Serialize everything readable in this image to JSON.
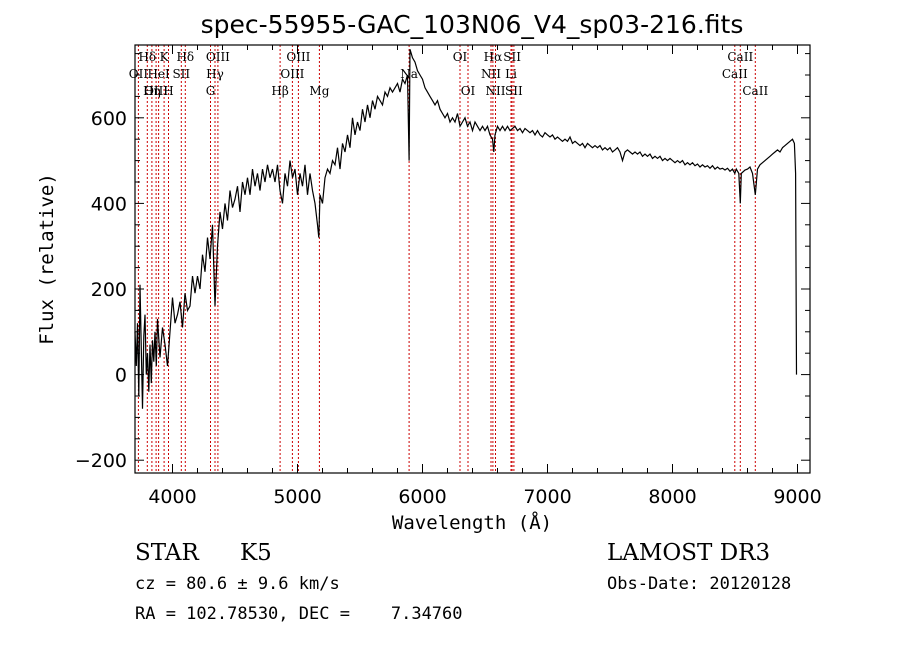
{
  "chart_data": {
    "type": "line",
    "title": "spec-55955-GAC_103N06_V4_sp03-216.fits",
    "xlabel": "Wavelength (Å)",
    "ylabel": "Flux (relative)",
    "xlim": [
      3700,
      9100
    ],
    "ylim": [
      -230,
      770
    ],
    "xticks": [
      4000,
      5000,
      6000,
      7000,
      8000,
      9000
    ],
    "yticks": [
      -200,
      0,
      200,
      400,
      600
    ],
    "series": [
      {
        "name": "spectrum",
        "points": [
          [
            3700,
            100
          ],
          [
            3710,
            20
          ],
          [
            3720,
            120
          ],
          [
            3730,
            -50
          ],
          [
            3740,
            210
          ],
          [
            3750,
            60
          ],
          [
            3760,
            -80
          ],
          [
            3770,
            90
          ],
          [
            3780,
            140
          ],
          [
            3790,
            0
          ],
          [
            3800,
            50
          ],
          [
            3810,
            -40
          ],
          [
            3820,
            70
          ],
          [
            3830,
            -20
          ],
          [
            3840,
            80
          ],
          [
            3850,
            30
          ],
          [
            3860,
            100
          ],
          [
            3870,
            20
          ],
          [
            3880,
            130
          ],
          [
            3900,
            40
          ],
          [
            3920,
            110
          ],
          [
            3940,
            70
          ],
          [
            3960,
            20
          ],
          [
            3980,
            100
          ],
          [
            4000,
            180
          ],
          [
            4020,
            120
          ],
          [
            4040,
            140
          ],
          [
            4060,
            170
          ],
          [
            4080,
            110
          ],
          [
            4100,
            190
          ],
          [
            4120,
            150
          ],
          [
            4140,
            160
          ],
          [
            4160,
            230
          ],
          [
            4180,
            190
          ],
          [
            4200,
            230
          ],
          [
            4220,
            200
          ],
          [
            4240,
            280
          ],
          [
            4260,
            240
          ],
          [
            4280,
            320
          ],
          [
            4300,
            270
          ],
          [
            4320,
            350
          ],
          [
            4340,
            160
          ],
          [
            4360,
            300
          ],
          [
            4380,
            380
          ],
          [
            4400,
            340
          ],
          [
            4420,
            400
          ],
          [
            4440,
            360
          ],
          [
            4460,
            430
          ],
          [
            4480,
            390
          ],
          [
            4500,
            410
          ],
          [
            4520,
            440
          ],
          [
            4540,
            380
          ],
          [
            4560,
            450
          ],
          [
            4580,
            420
          ],
          [
            4600,
            460
          ],
          [
            4620,
            420
          ],
          [
            4640,
            480
          ],
          [
            4660,
            440
          ],
          [
            4680,
            470
          ],
          [
            4700,
            430
          ],
          [
            4720,
            480
          ],
          [
            4740,
            450
          ],
          [
            4760,
            490
          ],
          [
            4780,
            460
          ],
          [
            4800,
            480
          ],
          [
            4820,
            450
          ],
          [
            4840,
            490
          ],
          [
            4860,
            430
          ],
          [
            4880,
            400
          ],
          [
            4900,
            470
          ],
          [
            4920,
            440
          ],
          [
            4940,
            500
          ],
          [
            4960,
            460
          ],
          [
            4980,
            480
          ],
          [
            5000,
            420
          ],
          [
            5020,
            470
          ],
          [
            5040,
            440
          ],
          [
            5060,
            490
          ],
          [
            5080,
            420
          ],
          [
            5100,
            470
          ],
          [
            5120,
            430
          ],
          [
            5140,
            400
          ],
          [
            5160,
            350
          ],
          [
            5170,
            320
          ],
          [
            5180,
            420
          ],
          [
            5200,
            400
          ],
          [
            5220,
            460
          ],
          [
            5240,
            480
          ],
          [
            5260,
            470
          ],
          [
            5280,
            500
          ],
          [
            5300,
            490
          ],
          [
            5320,
            530
          ],
          [
            5340,
            480
          ],
          [
            5360,
            540
          ],
          [
            5380,
            520
          ],
          [
            5400,
            560
          ],
          [
            5420,
            530
          ],
          [
            5440,
            600
          ],
          [
            5460,
            560
          ],
          [
            5480,
            590
          ],
          [
            5500,
            570
          ],
          [
            5520,
            620
          ],
          [
            5540,
            590
          ],
          [
            5560,
            630
          ],
          [
            5580,
            600
          ],
          [
            5600,
            640
          ],
          [
            5620,
            620
          ],
          [
            5640,
            650
          ],
          [
            5660,
            640
          ],
          [
            5680,
            630
          ],
          [
            5700,
            660
          ],
          [
            5720,
            650
          ],
          [
            5740,
            670
          ],
          [
            5760,
            660
          ],
          [
            5780,
            670
          ],
          [
            5800,
            680
          ],
          [
            5820,
            660
          ],
          [
            5840,
            690
          ],
          [
            5860,
            680
          ],
          [
            5880,
            700
          ],
          [
            5893,
            500
          ],
          [
            5900,
            760
          ],
          [
            5920,
            740
          ],
          [
            5940,
            730
          ],
          [
            5960,
            710
          ],
          [
            5980,
            700
          ],
          [
            6000,
            690
          ],
          [
            6020,
            670
          ],
          [
            6040,
            660
          ],
          [
            6060,
            650
          ],
          [
            6080,
            640
          ],
          [
            6100,
            630
          ],
          [
            6120,
            640
          ],
          [
            6140,
            620
          ],
          [
            6160,
            610
          ],
          [
            6180,
            600
          ],
          [
            6200,
            610
          ],
          [
            6220,
            590
          ],
          [
            6240,
            600
          ],
          [
            6260,
            590
          ],
          [
            6280,
            610
          ],
          [
            6300,
            580
          ],
          [
            6320,
            590
          ],
          [
            6340,
            600
          ],
          [
            6360,
            580
          ],
          [
            6380,
            590
          ],
          [
            6400,
            570
          ],
          [
            6420,
            590
          ],
          [
            6440,
            580
          ],
          [
            6460,
            570
          ],
          [
            6480,
            580
          ],
          [
            6500,
            570
          ],
          [
            6520,
            580
          ],
          [
            6540,
            560
          ],
          [
            6560,
            550
          ],
          [
            6570,
            520
          ],
          [
            6580,
            560
          ],
          [
            6600,
            580
          ],
          [
            6620,
            570
          ],
          [
            6640,
            580
          ],
          [
            6660,
            570
          ],
          [
            6680,
            580
          ],
          [
            6700,
            570
          ],
          [
            6720,
            575
          ],
          [
            6740,
            580
          ],
          [
            6760,
            570
          ],
          [
            6780,
            575
          ],
          [
            6800,
            565
          ],
          [
            6820,
            575
          ],
          [
            6840,
            570
          ],
          [
            6860,
            565
          ],
          [
            6880,
            570
          ],
          [
            6900,
            560
          ],
          [
            6920,
            570
          ],
          [
            6940,
            560
          ],
          [
            6960,
            555
          ],
          [
            6980,
            565
          ],
          [
            7000,
            560
          ],
          [
            7020,
            555
          ],
          [
            7040,
            560
          ],
          [
            7060,
            550
          ],
          [
            7080,
            555
          ],
          [
            7100,
            550
          ],
          [
            7120,
            545
          ],
          [
            7140,
            550
          ],
          [
            7160,
            545
          ],
          [
            7180,
            555
          ],
          [
            7200,
            540
          ],
          [
            7220,
            545
          ],
          [
            7240,
            540
          ],
          [
            7260,
            535
          ],
          [
            7280,
            540
          ],
          [
            7300,
            530
          ],
          [
            7320,
            540
          ],
          [
            7340,
            535
          ],
          [
            7360,
            530
          ],
          [
            7380,
            535
          ],
          [
            7400,
            530
          ],
          [
            7420,
            535
          ],
          [
            7440,
            525
          ],
          [
            7460,
            530
          ],
          [
            7480,
            525
          ],
          [
            7500,
            530
          ],
          [
            7520,
            520
          ],
          [
            7540,
            525
          ],
          [
            7560,
            530
          ],
          [
            7580,
            520
          ],
          [
            7600,
            500
          ],
          [
            7620,
            520
          ],
          [
            7640,
            525
          ],
          [
            7660,
            520
          ],
          [
            7680,
            515
          ],
          [
            7700,
            520
          ],
          [
            7720,
            515
          ],
          [
            7740,
            520
          ],
          [
            7760,
            510
          ],
          [
            7780,
            515
          ],
          [
            7800,
            510
          ],
          [
            7820,
            515
          ],
          [
            7840,
            505
          ],
          [
            7860,
            510
          ],
          [
            7880,
            505
          ],
          [
            7900,
            510
          ],
          [
            7920,
            500
          ],
          [
            7940,
            505
          ],
          [
            7960,
            500
          ],
          [
            7980,
            505
          ],
          [
            8000,
            500
          ],
          [
            8020,
            495
          ],
          [
            8040,
            500
          ],
          [
            8060,
            495
          ],
          [
            8080,
            500
          ],
          [
            8100,
            490
          ],
          [
            8120,
            495
          ],
          [
            8140,
            490
          ],
          [
            8160,
            495
          ],
          [
            8180,
            488
          ],
          [
            8200,
            492
          ],
          [
            8220,
            485
          ],
          [
            8240,
            490
          ],
          [
            8260,
            485
          ],
          [
            8280,
            488
          ],
          [
            8300,
            482
          ],
          [
            8320,
            488
          ],
          [
            8340,
            480
          ],
          [
            8360,
            485
          ],
          [
            8380,
            480
          ],
          [
            8400,
            482
          ],
          [
            8420,
            478
          ],
          [
            8440,
            482
          ],
          [
            8460,
            475
          ],
          [
            8480,
            480
          ],
          [
            8498,
            470
          ],
          [
            8510,
            480
          ],
          [
            8530,
            470
          ],
          [
            8542,
            400
          ],
          [
            8550,
            470
          ],
          [
            8580,
            478
          ],
          [
            8600,
            480
          ],
          [
            8620,
            485
          ],
          [
            8640,
            470
          ],
          [
            8662,
            420
          ],
          [
            8680,
            480
          ],
          [
            8700,
            490
          ],
          [
            8720,
            495
          ],
          [
            8740,
            500
          ],
          [
            8760,
            505
          ],
          [
            8780,
            510
          ],
          [
            8800,
            515
          ],
          [
            8820,
            520
          ],
          [
            8840,
            525
          ],
          [
            8860,
            520
          ],
          [
            8880,
            530
          ],
          [
            8900,
            535
          ],
          [
            8920,
            540
          ],
          [
            8940,
            545
          ],
          [
            8960,
            550
          ],
          [
            8975,
            540
          ],
          [
            8985,
            470
          ],
          [
            8990,
            100
          ],
          [
            8992,
            0
          ]
        ]
      }
    ],
    "lines": [
      {
        "label": "Hδ",
        "x": 3798,
        "row": 0
      },
      {
        "label": "OII",
        "x": 3727,
        "row": 1
      },
      {
        "label": "OIII",
        "x": 3869,
        "row": 2
      },
      {
        "label": "K",
        "x": 3933,
        "row": 0
      },
      {
        "label": "HeI",
        "x": 3889,
        "row": 1
      },
      {
        "label": "Hη",
        "x": 3835,
        "row": 2
      },
      {
        "label": "Hδ",
        "x": 4102,
        "row": 0
      },
      {
        "label": "SII",
        "x": 4070,
        "row": 1
      },
      {
        "label": "H",
        "x": 3968,
        "row": 2
      },
      {
        "label": "OIII",
        "x": 4363,
        "row": 0
      },
      {
        "label": "Hγ",
        "x": 4340,
        "row": 1
      },
      {
        "label": "G",
        "x": 4304,
        "row": 2
      },
      {
        "label": "OIII",
        "x": 5007,
        "row": 0
      },
      {
        "label": "OIII",
        "x": 4959,
        "row": 1
      },
      {
        "label": "Hβ",
        "x": 4861,
        "row": 2
      },
      {
        "label": "Mg",
        "x": 5175,
        "row": 2
      },
      {
        "label": "Na",
        "x": 5893,
        "row": 1
      },
      {
        "label": "OI",
        "x": 6300,
        "row": 0
      },
      {
        "label": "OI",
        "x": 6364,
        "row": 2
      },
      {
        "label": "Hα",
        "x": 6563,
        "row": 0
      },
      {
        "label": "NII",
        "x": 6548,
        "row": 1
      },
      {
        "label": "NII",
        "x": 6584,
        "row": 2
      },
      {
        "label": "SII",
        "x": 6717,
        "row": 0
      },
      {
        "label": "Li",
        "x": 6708,
        "row": 1
      },
      {
        "label": "SII",
        "x": 6731,
        "row": 2
      },
      {
        "label": "CaII",
        "x": 8542,
        "row": 0
      },
      {
        "label": "CaII",
        "x": 8498,
        "row": 1
      },
      {
        "label": "CaII",
        "x": 8662,
        "row": 2
      }
    ]
  },
  "info": {
    "class": "STAR",
    "subclass": "K5",
    "survey": "LAMOST DR3",
    "cz": "cz = 80.6 ± 9.6 km/s",
    "obs_date": "Obs-Date: 20120128",
    "coords": "RA = 102.78530, DEC =    7.34760"
  },
  "colors": {
    "line": "#000000",
    "marker": "#cc0000"
  }
}
